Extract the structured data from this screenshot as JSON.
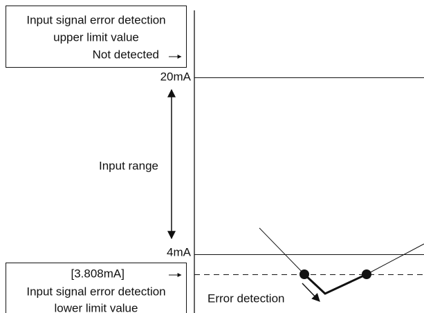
{
  "upper_box": {
    "lines": [
      "Input signal error detection",
      "upper limit value",
      "Not detected"
    ]
  },
  "levels": {
    "high": "20mA",
    "low": "4mA"
  },
  "range_label": "Input range",
  "lower_box": {
    "lines": [
      "[3.808mA]",
      "Input signal error detection",
      "lower limit value"
    ]
  },
  "event_label": "Error detection"
}
